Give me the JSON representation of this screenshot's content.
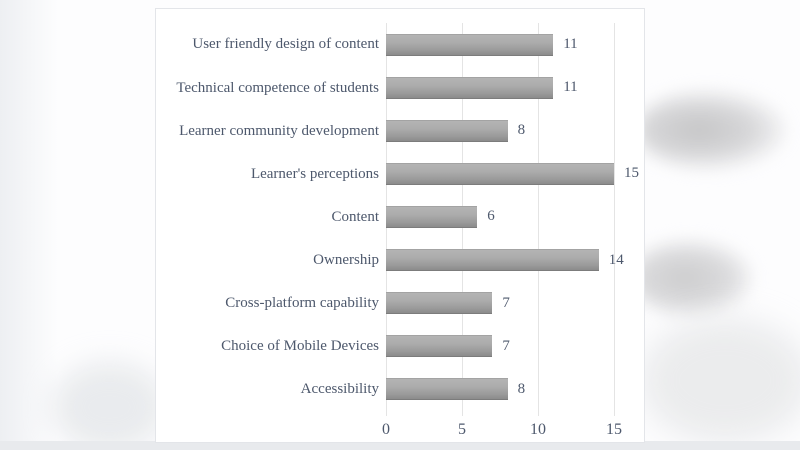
{
  "chart_data": {
    "type": "bar",
    "orientation": "horizontal",
    "title": "",
    "xlabel": "",
    "ylabel": "",
    "categories": [
      "User friendly design of content",
      "Technical competence of students",
      "Learner community development",
      "Learner's perceptions",
      "Content",
      "Ownership",
      "Cross-platform capability",
      "Choice of Mobile Devices",
      "Accessibility"
    ],
    "values": [
      11,
      11,
      8,
      15,
      6,
      14,
      7,
      7,
      8
    ],
    "data_labels": [
      "11",
      "11",
      "8",
      "15",
      "6",
      "14",
      "7",
      "7",
      "8"
    ],
    "xlim": [
      0,
      15
    ],
    "x_ticks": [
      "0",
      "5",
      "10",
      "15"
    ],
    "grid": true,
    "legend": "none",
    "colors": {
      "bar": "#a6a6a6",
      "text": "#4d586c",
      "gridline": "#e4e4e4",
      "panel_background": "#ffffff"
    }
  }
}
